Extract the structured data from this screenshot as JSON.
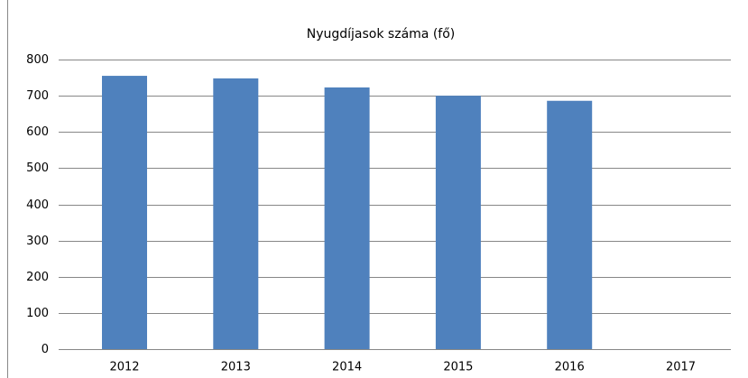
{
  "chart_data": {
    "type": "bar",
    "title": "Nyugdíjasok száma (fő)",
    "categories": [
      "2012",
      "2013",
      "2014",
      "2015",
      "2016",
      "2017"
    ],
    "values": [
      755,
      748,
      723,
      700,
      686,
      null
    ],
    "color": "#4f81bd",
    "ylim": [
      0,
      800
    ],
    "yticks": [
      0,
      100,
      200,
      300,
      400,
      500,
      600,
      700,
      800
    ],
    "grid": true
  }
}
